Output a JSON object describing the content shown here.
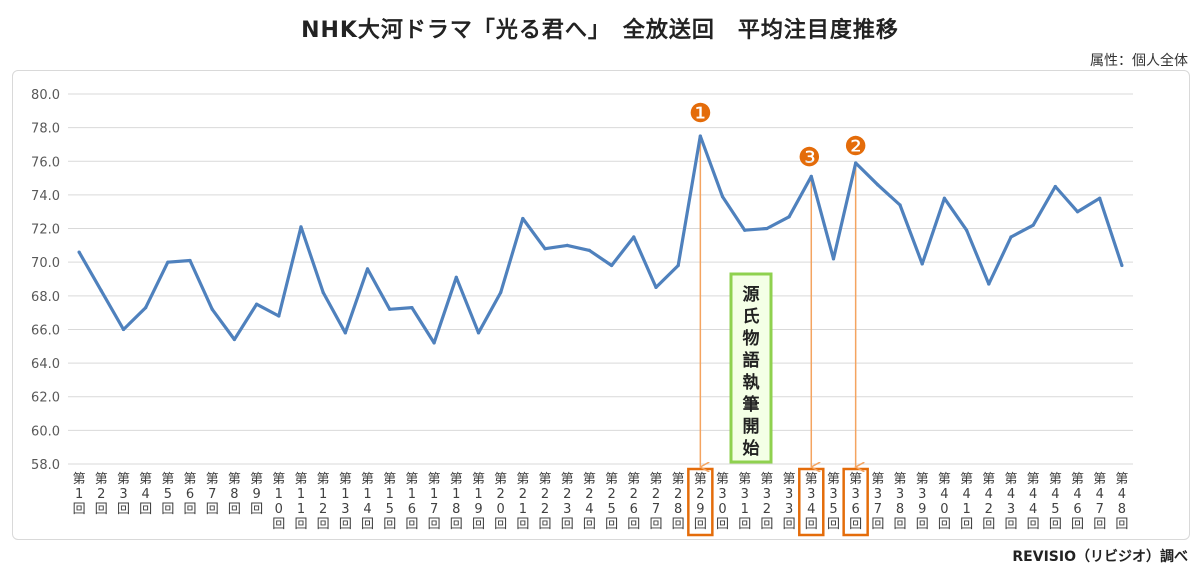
{
  "title": "NHK大河ドラマ「光る君へ」　全放送回　平均注目度推移",
  "attribute_note": "属性：個人全体",
  "source_note": "REVISIO（リビジオ）調べ",
  "annotation_box": "源氏物語執筆開始",
  "markers": [
    {
      "label": "❶",
      "episode": 29
    },
    {
      "label": "❷",
      "episode": 36
    },
    {
      "label": "❸",
      "episode": 34
    }
  ],
  "colors": {
    "line": "#4f81bd",
    "accent": "#e46c0a",
    "arrow": "#f4a460",
    "box_border": "#8fd14f",
    "box_fill": "#f4ffe6",
    "grid": "#d9d9d9"
  },
  "chart_data": {
    "type": "line",
    "title": "NHK大河ドラマ「光る君へ」　全放送回　平均注目度推移",
    "xlabel": "",
    "ylabel": "",
    "ylim": [
      58.0,
      80.0
    ],
    "yticks": [
      "58.0",
      "60.0",
      "62.0",
      "64.0",
      "66.0",
      "68.0",
      "70.0",
      "72.0",
      "74.0",
      "76.0",
      "78.0",
      "80.0"
    ],
    "grid": true,
    "legend": "none",
    "categories": [
      "第1回",
      "第2回",
      "第3回",
      "第4回",
      "第5回",
      "第6回",
      "第7回",
      "第8回",
      "第9回",
      "第10回",
      "第11回",
      "第12回",
      "第13回",
      "第14回",
      "第15回",
      "第16回",
      "第17回",
      "第18回",
      "第19回",
      "第20回",
      "第21回",
      "第22回",
      "第23回",
      "第24回",
      "第25回",
      "第26回",
      "第27回",
      "第28回",
      "第29回",
      "第30回",
      "第31回",
      "第32回",
      "第33回",
      "第34回",
      "第35回",
      "第36回",
      "第37回",
      "第38回",
      "第39回",
      "第40回",
      "第41回",
      "第42回",
      "第43回",
      "第44回",
      "第45回",
      "第46回",
      "第47回",
      "第48回"
    ],
    "series": [
      {
        "values": [
          70.6,
          68.3,
          66.0,
          67.3,
          70.0,
          70.1,
          67.2,
          65.4,
          67.5,
          66.8,
          72.1,
          68.2,
          65.8,
          69.6,
          67.2,
          67.3,
          65.2,
          69.1,
          65.8,
          68.2,
          72.6,
          70.8,
          71.0,
          70.7,
          69.8,
          71.5,
          68.5,
          69.8,
          77.5,
          73.9,
          71.9,
          72.0,
          72.7,
          75.1,
          70.2,
          75.9,
          74.6,
          73.4,
          69.9,
          73.8,
          71.9,
          68.7,
          71.5,
          72.2,
          74.5,
          73.0,
          73.8,
          69.8
        ]
      }
    ]
  }
}
